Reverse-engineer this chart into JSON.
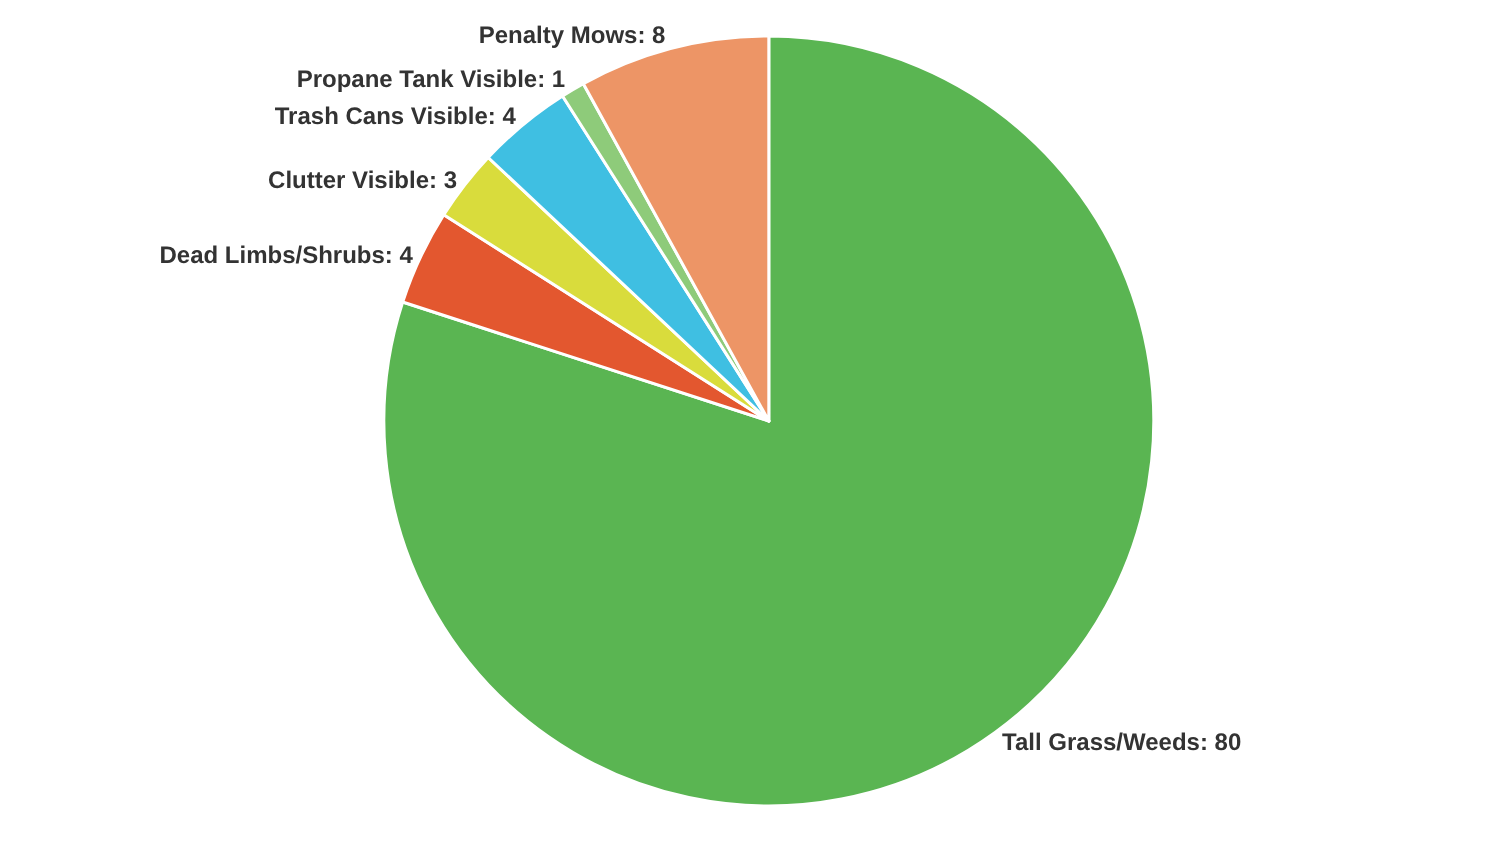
{
  "chart_data": {
    "type": "pie",
    "categories": [
      "Tall Grass/Weeds",
      "Dead Limbs/Shrubs",
      "Clutter Visible",
      "Trash Cans Visible",
      "Propane Tank Visible",
      "Penalty Mows"
    ],
    "values": [
      80,
      4,
      3,
      4,
      1,
      8
    ],
    "colors": [
      "#5ab552",
      "#e3572f",
      "#d9dc3c",
      "#3fbfe2",
      "#8ecb7a",
      "#ed9566"
    ],
    "value_labels": [
      ": 80",
      ": 4",
      ": 3",
      ": 4",
      ": 1",
      ": 8"
    ],
    "legend": false
  }
}
